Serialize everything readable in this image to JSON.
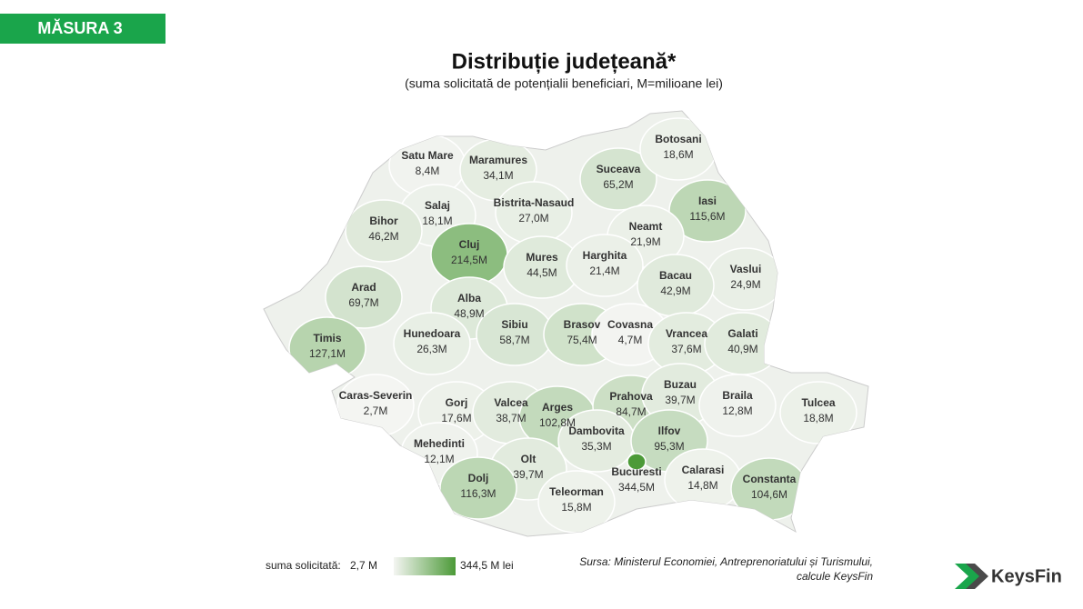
{
  "badge": "MĂSURA 3",
  "header": {
    "title": "Distribuție județeană*",
    "subtitle": "(suma solicitată de potențialii beneficiari, M=milioane lei)"
  },
  "regions": [
    {
      "name": "Satu Mare",
      "value": 8.4,
      "value_label": "8,4M"
    },
    {
      "name": "Maramures",
      "value": 34.1,
      "value_label": "34,1M"
    },
    {
      "name": "Suceava",
      "value": 65.2,
      "value_label": "65,2M"
    },
    {
      "name": "Botosani",
      "value": 18.6,
      "value_label": "18,6M"
    },
    {
      "name": "Iasi",
      "value": 115.6,
      "value_label": "115,6M"
    },
    {
      "name": "Salaj",
      "value": 18.1,
      "value_label": "18,1M"
    },
    {
      "name": "Bistrita-Nasaud",
      "value": 27.0,
      "value_label": "27,0M"
    },
    {
      "name": "Bihor",
      "value": 46.2,
      "value_label": "46,2M"
    },
    {
      "name": "Cluj",
      "value": 214.5,
      "value_label": "214,5M"
    },
    {
      "name": "Neamt",
      "value": 21.9,
      "value_label": "21,9M"
    },
    {
      "name": "Mures",
      "value": 44.5,
      "value_label": "44,5M"
    },
    {
      "name": "Harghita",
      "value": 21.4,
      "value_label": "21,4M"
    },
    {
      "name": "Vaslui",
      "value": 24.9,
      "value_label": "24,9M"
    },
    {
      "name": "Bacau",
      "value": 42.9,
      "value_label": "42,9M"
    },
    {
      "name": "Arad",
      "value": 69.7,
      "value_label": "69,7M"
    },
    {
      "name": "Alba",
      "value": 48.9,
      "value_label": "48,9M"
    },
    {
      "name": "Hunedoara",
      "value": 26.3,
      "value_label": "26,3M"
    },
    {
      "name": "Sibiu",
      "value": 58.7,
      "value_label": "58,7M"
    },
    {
      "name": "Brasov",
      "value": 75.4,
      "value_label": "75,4M"
    },
    {
      "name": "Covasna",
      "value": 4.7,
      "value_label": "4,7M"
    },
    {
      "name": "Vrancea",
      "value": 37.6,
      "value_label": "37,6M"
    },
    {
      "name": "Galati",
      "value": 40.9,
      "value_label": "40,9M"
    },
    {
      "name": "Timis",
      "value": 127.1,
      "value_label": "127,1M"
    },
    {
      "name": "Caras-Severin",
      "value": 2.7,
      "value_label": "2,7M"
    },
    {
      "name": "Gorj",
      "value": 17.6,
      "value_label": "17,6M"
    },
    {
      "name": "Valcea",
      "value": 38.7,
      "value_label": "38,7M"
    },
    {
      "name": "Arges",
      "value": 102.8,
      "value_label": "102,8M"
    },
    {
      "name": "Prahova",
      "value": 84.7,
      "value_label": "84,7M"
    },
    {
      "name": "Buzau",
      "value": 39.7,
      "value_label": "39,7M"
    },
    {
      "name": "Braila",
      "value": 12.8,
      "value_label": "12,8M"
    },
    {
      "name": "Tulcea",
      "value": 18.8,
      "value_label": "18,8M"
    },
    {
      "name": "Dambovita",
      "value": 35.3,
      "value_label": "35,3M"
    },
    {
      "name": "Ilfov",
      "value": 95.3,
      "value_label": "95,3M"
    },
    {
      "name": "Mehedinti",
      "value": 12.1,
      "value_label": "12,1M"
    },
    {
      "name": "Olt",
      "value": 39.7,
      "value_label": "39,7M"
    },
    {
      "name": "Bucuresti",
      "value": 344.5,
      "value_label": "344,5M"
    },
    {
      "name": "Calarasi",
      "value": 14.8,
      "value_label": "14,8M"
    },
    {
      "name": "Constanta",
      "value": 104.6,
      "value_label": "104,6M"
    },
    {
      "name": "Dolj",
      "value": 116.3,
      "value_label": "116,3M"
    },
    {
      "name": "Teleorman",
      "value": 15.8,
      "value_label": "15,8M"
    }
  ],
  "legend": {
    "title": "suma solicitată:",
    "range": [
      2.7,
      344.5
    ],
    "min_label": "2,7 M",
    "max_label": "344,5 M lei",
    "colors": [
      "#f4f5f2",
      "#4c9a38"
    ]
  },
  "source": [
    "Sursa: Ministerul Economiei, Antreprenoriatului și Turismului,",
    "calcule KeysFin"
  ],
  "logo": "KeysFin"
}
